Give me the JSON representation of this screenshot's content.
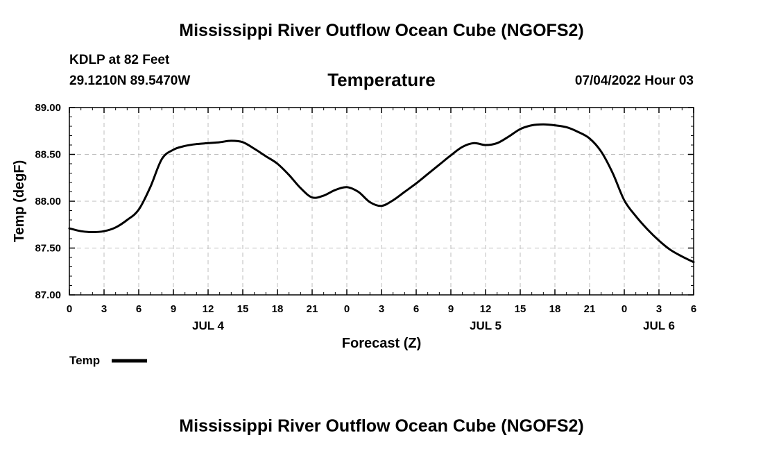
{
  "header": {
    "title": "Mississippi River Outflow Ocean Cube (NGOFS2)",
    "station": "KDLP at 82 Feet",
    "coords": "29.1210N  89.5470W",
    "datetime": "07/04/2022 Hour 03"
  },
  "footer": {
    "title": "Mississippi River Outflow Ocean Cube (NGOFS2)"
  },
  "chart_data": {
    "type": "line",
    "title": "Temperature",
    "xlabel": "Forecast (Z)",
    "ylabel": "Temp (degF)",
    "xlim": [
      0,
      54
    ],
    "ylim": [
      87.0,
      89.0
    ],
    "grid": true,
    "x_ticks": [
      0,
      3,
      6,
      9,
      12,
      15,
      18,
      21,
      24,
      27,
      30,
      33,
      36,
      39,
      42,
      45,
      48,
      51,
      54
    ],
    "x_tick_labels": [
      "0",
      "3",
      "6",
      "9",
      "12",
      "15",
      "18",
      "21",
      "0",
      "3",
      "6",
      "9",
      "12",
      "15",
      "18",
      "21",
      "0",
      "3",
      "6"
    ],
    "y_ticks": [
      87.0,
      87.5,
      88.0,
      88.5,
      89.0
    ],
    "y_tick_labels": [
      "87.00",
      "87.50",
      "88.00",
      "88.50",
      "89.00"
    ],
    "day_labels": [
      {
        "x": 12,
        "label": "JUL 4"
      },
      {
        "x": 36,
        "label": "JUL 5"
      },
      {
        "x": 51,
        "label": "JUL 6"
      }
    ],
    "legend": {
      "label": "Temp",
      "placement": "bottom-left"
    },
    "series": [
      {
        "name": "Temp",
        "x": [
          0,
          1,
          2,
          3,
          4,
          5,
          6,
          7,
          8,
          9,
          10,
          11,
          12,
          13,
          14,
          15,
          16,
          17,
          18,
          19,
          20,
          21,
          22,
          23,
          24,
          25,
          26,
          27,
          28,
          29,
          30,
          31,
          32,
          33,
          34,
          35,
          36,
          37,
          38,
          39,
          40,
          41,
          42,
          43,
          44,
          45,
          46,
          47,
          48,
          49,
          50,
          51,
          52,
          53,
          54
        ],
        "values": [
          87.71,
          87.68,
          87.67,
          87.68,
          87.72,
          87.8,
          87.91,
          88.15,
          88.45,
          88.55,
          88.59,
          88.61,
          88.62,
          88.63,
          88.645,
          88.63,
          88.56,
          88.48,
          88.4,
          88.28,
          88.14,
          88.04,
          88.06,
          88.12,
          88.15,
          88.1,
          87.99,
          87.95,
          88.01,
          88.1,
          88.19,
          88.29,
          88.39,
          88.49,
          88.58,
          88.62,
          88.6,
          88.62,
          88.69,
          88.77,
          88.81,
          88.82,
          88.81,
          88.79,
          88.74,
          88.67,
          88.53,
          88.3,
          88.01,
          87.84,
          87.7,
          87.58,
          87.48,
          87.41,
          87.35
        ]
      }
    ]
  }
}
